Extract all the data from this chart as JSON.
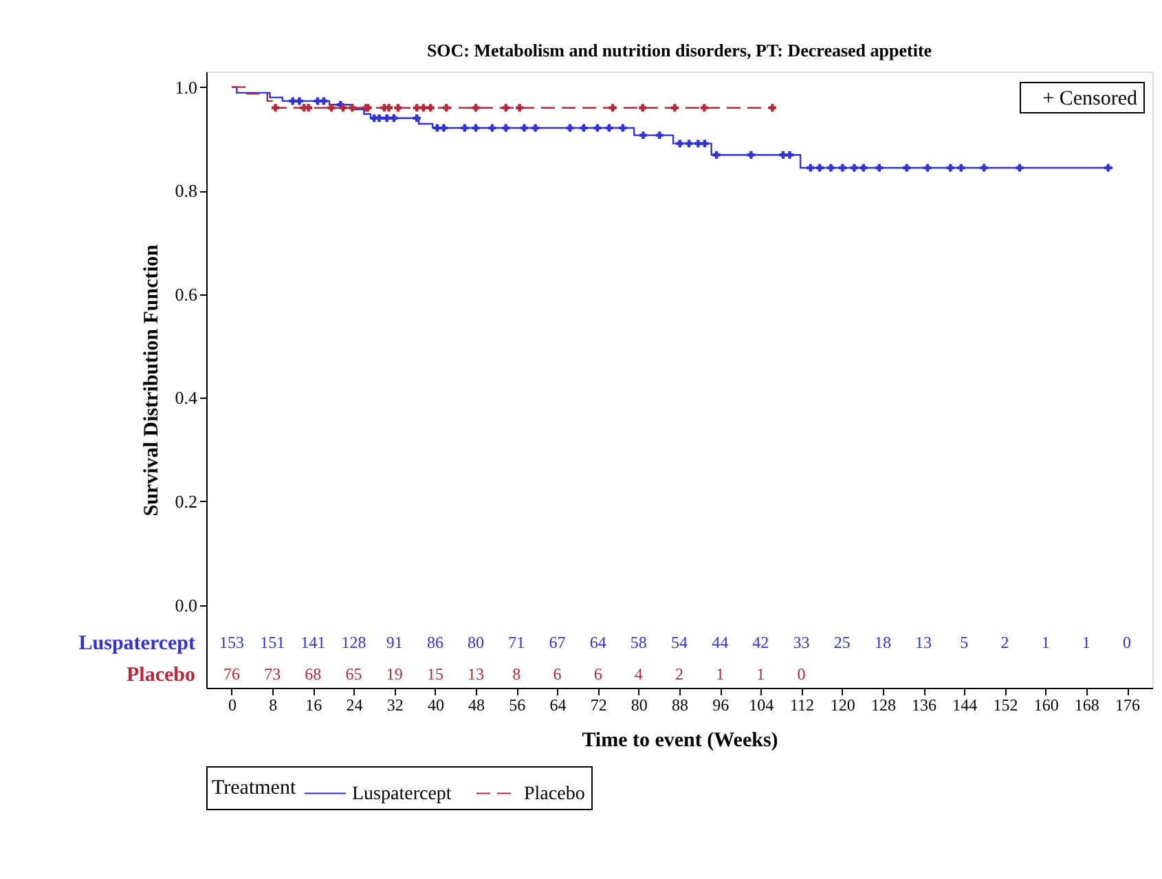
{
  "chart_data": {
    "type": "line",
    "title": "SOC: Metabolism and nutrition disorders, PT: Decreased appetite",
    "xlabel": "Time to event (Weeks)",
    "ylabel": "Survival Distribution Function",
    "legend_title": "Treatment",
    "legend": "bottom",
    "grid": false,
    "xlim": [
      -5,
      181
    ],
    "xticks": [
      0,
      8,
      16,
      24,
      32,
      40,
      48,
      56,
      64,
      72,
      80,
      88,
      96,
      104,
      112,
      120,
      128,
      136,
      144,
      152,
      160,
      168,
      176
    ],
    "ylim": [
      -0.16,
      1.03
    ],
    "yticks": [
      {
        "value": 0,
        "label": "0.0"
      },
      {
        "value": 0.2,
        "label": "0.2"
      },
      {
        "value": 0.4,
        "label": "0.4"
      },
      {
        "value": 0.6,
        "label": "0.6"
      },
      {
        "value": 0.8,
        "label": "0.8"
      },
      {
        "value": 1,
        "label": "1.0"
      }
    ],
    "series": [
      {
        "name": "Luspatercept",
        "color": "#3232d2",
        "line_style": "solid",
        "x": [
          0,
          1,
          1,
          7.5,
          7.5,
          10,
          10,
          19.2,
          19.2,
          23.7,
          23.7,
          26,
          26,
          27.3,
          27.3,
          36.8,
          36.8,
          39.5,
          39.5,
          79.1,
          79.1,
          86.8,
          86.8,
          94.3,
          94.3,
          111.8,
          111.8,
          173.2
        ],
        "values": [
          1,
          1,
          0.989,
          0.989,
          0.98,
          0.98,
          0.973,
          0.973,
          0.966,
          0.966,
          0.957,
          0.957,
          0.948,
          0.948,
          0.94,
          0.94,
          0.929,
          0.929,
          0.921,
          0.921,
          0.907,
          0.907,
          0.891,
          0.891,
          0.869,
          0.869,
          0.844,
          0.844
        ]
      },
      {
        "name": "Placebo",
        "color": "#b22a3a",
        "line_style": "dashed",
        "x": [
          0,
          3,
          3,
          7,
          7,
          8.4,
          8.4,
          106.3
        ],
        "values": [
          1,
          1,
          0.987,
          0.987,
          0.973,
          0.973,
          0.96,
          0.96
        ]
      },
      {
        "type": "scatter",
        "marker": "cross",
        "color": "#3232d2",
        "x": [
          12,
          13.3,
          16.9,
          18.1,
          21.4,
          28,
          29,
          30.5,
          31.9,
          36.4,
          40.4,
          41.7,
          45.8,
          48,
          51.2,
          53.9,
          57.5,
          59.7,
          66.5,
          69.2,
          71.9,
          74.2,
          76.9,
          80.9,
          84.1,
          88.1,
          89.9,
          91.7,
          93,
          95.3,
          102.1,
          108.4,
          109.7,
          113.8,
          115.6,
          117.8,
          120.1,
          122.4,
          124.2,
          127.3,
          132.7,
          136.8,
          141.3,
          143.4,
          147.9,
          154.9,
          172.3
        ],
        "values": [
          0.973,
          0.973,
          0.973,
          0.973,
          0.966,
          0.94,
          0.94,
          0.94,
          0.94,
          0.94,
          0.921,
          0.921,
          0.921,
          0.921,
          0.921,
          0.921,
          0.921,
          0.921,
          0.921,
          0.921,
          0.921,
          0.921,
          0.921,
          0.907,
          0.907,
          0.891,
          0.891,
          0.891,
          0.891,
          0.869,
          0.869,
          0.869,
          0.869,
          0.844,
          0.844,
          0.844,
          0.844,
          0.844,
          0.844,
          0.844,
          0.844,
          0.844,
          0.844,
          0.844,
          0.844,
          0.844,
          0.844
        ]
      },
      {
        "type": "scatter",
        "marker": "cross",
        "color": "#b22a3a",
        "x": [
          8.6,
          14.2,
          15.1,
          19.6,
          21.9,
          23.7,
          26.4,
          26.8,
          30,
          30.9,
          32.7,
          36.4,
          37.7,
          39.1,
          42.2,
          48,
          53.9,
          56.6,
          74.9,
          80.8,
          87.1,
          92.9,
          106.3
        ],
        "values": [
          0.96,
          0.96,
          0.96,
          0.96,
          0.96,
          0.96,
          0.96,
          0.96,
          0.96,
          0.96,
          0.96,
          0.96,
          0.96,
          0.96,
          0.96,
          0.96,
          0.96,
          0.96,
          0.96,
          0.96,
          0.96,
          0.96,
          0.96
        ]
      }
    ],
    "annotations": [
      "+ Censored",
      "153 151 141 128 91 86 80 71 67 64 58 54 44 42 33 25 18 13 5 2 1 1 0",
      "76 73 68 65 19 15 13 8 6 6 4 2 1 1 0"
    ]
  }
}
